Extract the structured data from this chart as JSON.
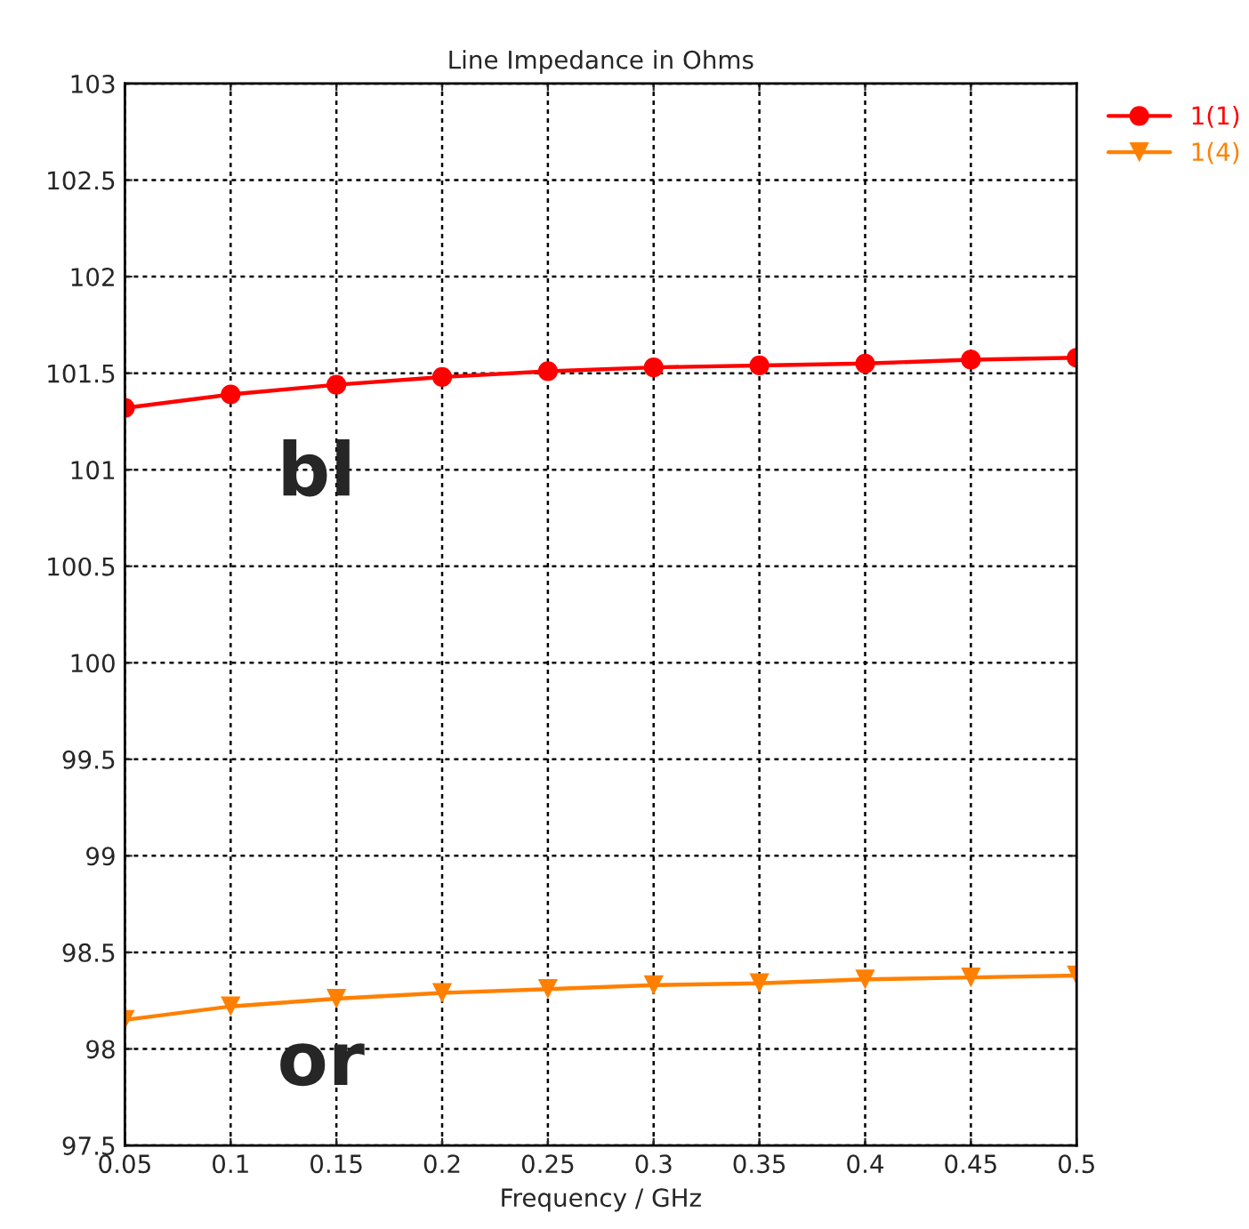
{
  "chart_data": {
    "type": "line",
    "title": "Line Impedance in Ohms",
    "xlabel": "Frequency / GHz",
    "x": [
      0.05,
      0.1,
      0.15,
      0.2,
      0.25,
      0.3,
      0.35,
      0.4,
      0.45,
      0.5
    ],
    "series": [
      {
        "name": "1(1)",
        "color": "#ff0000",
        "marker": "circle",
        "values": [
          101.32,
          101.39,
          101.44,
          101.48,
          101.51,
          101.53,
          101.54,
          101.55,
          101.57,
          101.58
        ]
      },
      {
        "name": "1(4)",
        "color": "#ff8000",
        "marker": "triangle",
        "values": [
          98.15,
          98.22,
          98.26,
          98.29,
          98.31,
          98.33,
          98.34,
          98.36,
          98.37,
          98.38
        ]
      }
    ],
    "xlim": [
      0.05,
      0.5
    ],
    "xticks": [
      0.05,
      0.1,
      0.15,
      0.2,
      0.25,
      0.3,
      0.35,
      0.4,
      0.45,
      0.5
    ],
    "ylim": [
      97.5,
      103
    ],
    "yticks": [
      97.5,
      98,
      98.5,
      99,
      99.5,
      100,
      100.5,
      101,
      101.5,
      102,
      102.5,
      103
    ],
    "grid": true,
    "legend": "top right",
    "line_style": "solid",
    "annotations": [
      "bl",
      "or"
    ]
  }
}
